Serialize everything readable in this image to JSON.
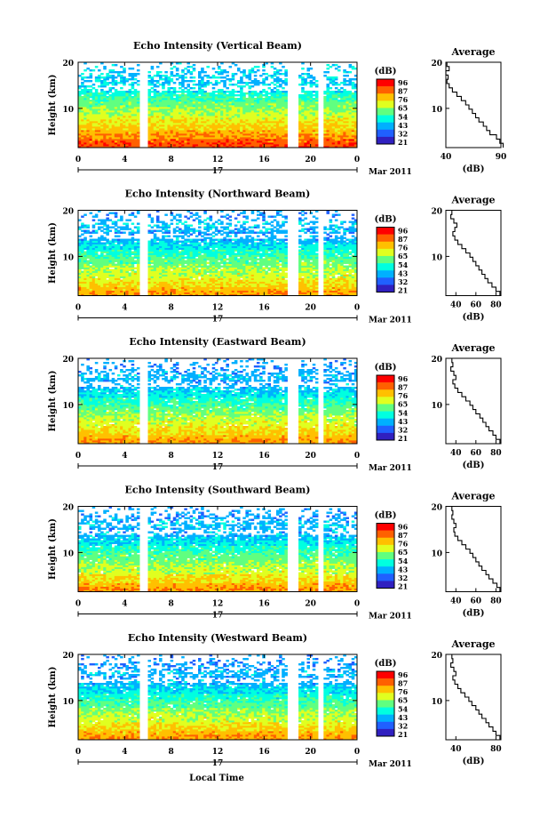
{
  "chart_data": {
    "type": "heatmap",
    "xlabel": "Local Time",
    "x_ticks": [
      "0",
      "4",
      "8",
      "12",
      "16",
      "20",
      "0"
    ],
    "xlim": [
      0,
      24
    ],
    "date_label": "17",
    "month_label": "Mar 2011",
    "ylabel": "Height (km)",
    "y_ticks": [
      "20",
      "10"
    ],
    "ylim": [
      1.5,
      20
    ],
    "colorbar": {
      "title": "(dB)",
      "range": [
        15,
        100
      ],
      "tick_labels": [
        "96",
        "87",
        "76",
        "65",
        "54",
        "43",
        "32",
        "21"
      ],
      "colors": [
        "#ff0000",
        "#ff6000",
        "#ffc000",
        "#e0ff20",
        "#60ff80",
        "#00ffe0",
        "#00b0ff",
        "#2060ff",
        "#3020c0"
      ]
    },
    "data_gaps_hours": [
      [
        5.2,
        5.9
      ],
      [
        18.0,
        19.0
      ],
      [
        20.6,
        21.1
      ]
    ],
    "panels": [
      {
        "title": "Echo Intensity (Vertical Beam)",
        "colorbar_ticks": [
          "96",
          "87",
          "76",
          "65",
          "54",
          "43",
          "32",
          "21"
        ],
        "avg_title": "Average",
        "avg_xlabel": "(dB)",
        "avg_xticks": [
          "40",
          "90"
        ],
        "avg_xlim": [
          40,
          90
        ],
        "profile_db": [
          92,
          89,
          86,
          80,
          77,
          74,
          70,
          67,
          64,
          61,
          58,
          54,
          50,
          46,
          43,
          41,
          42,
          40,
          43,
          41
        ]
      },
      {
        "title": "Echo Intensity (Northward Beam)",
        "colorbar_ticks": [
          "96",
          "87",
          "76",
          "65",
          "54",
          "43",
          "32",
          "21"
        ],
        "avg_title": "Average",
        "avg_xlabel": "(dB)",
        "avg_xticks": [
          "40",
          "60",
          "80"
        ],
        "avg_xlim": [
          30,
          85
        ],
        "profile_db": [
          84,
          80,
          76,
          72,
          69,
          66,
          63,
          60,
          57,
          54,
          50,
          46,
          42,
          39,
          37,
          39,
          41,
          38,
          35,
          36
        ]
      },
      {
        "title": "Echo Intensity (Eastward Beam)",
        "colorbar_ticks": [
          "96",
          "87",
          "76",
          "65",
          "54",
          "43",
          "32",
          "21"
        ],
        "avg_title": "Average",
        "avg_xlabel": "(dB)",
        "avg_xticks": [
          "40",
          "60",
          "80"
        ],
        "avg_xlim": [
          30,
          85
        ],
        "profile_db": [
          84,
          80,
          77,
          73,
          70,
          67,
          64,
          60,
          57,
          54,
          50,
          46,
          42,
          39,
          37,
          40,
          38,
          35,
          37,
          36
        ]
      },
      {
        "title": "Echo Intensity (Southward Beam)",
        "colorbar_ticks": [
          "96",
          "87",
          "76",
          "65",
          "54",
          "43",
          "32",
          "21"
        ],
        "avg_title": "Average",
        "avg_xlabel": "(dB)",
        "avg_xticks": [
          "40",
          "60",
          "80"
        ],
        "avg_xlim": [
          30,
          85
        ],
        "profile_db": [
          84,
          81,
          77,
          73,
          70,
          66,
          63,
          60,
          57,
          54,
          50,
          46,
          42,
          39,
          38,
          40,
          38,
          36,
          37,
          36
        ]
      },
      {
        "title": "Echo Intensity (Westward Beam)",
        "colorbar_ticks": [
          "96",
          "87",
          "76",
          "65",
          "54",
          "43",
          "32",
          "21"
        ],
        "avg_title": "Average",
        "avg_xlabel": "(dB)",
        "avg_xticks": [
          "40",
          "80"
        ],
        "avg_xlim": [
          30,
          85
        ],
        "profile_db": [
          84,
          80,
          77,
          73,
          70,
          66,
          63,
          60,
          56,
          53,
          49,
          45,
          42,
          39,
          37,
          40,
          38,
          35,
          37,
          36
        ]
      }
    ]
  }
}
